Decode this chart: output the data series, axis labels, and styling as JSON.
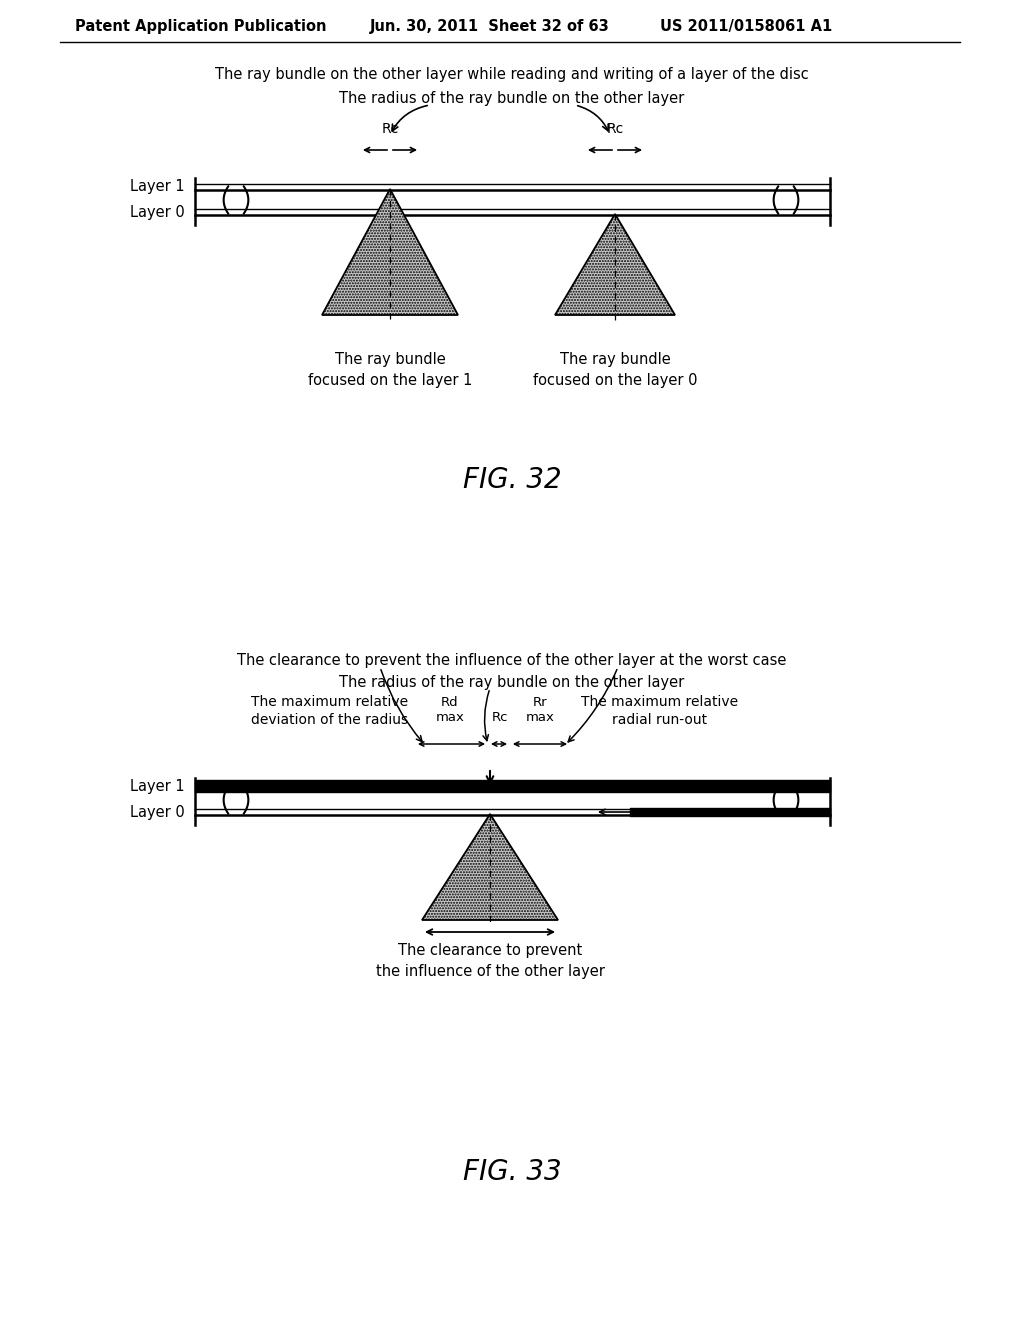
{
  "bg_color": "#ffffff",
  "header_text": "Patent Application Publication",
  "header_date": "Jun. 30, 2011  Sheet 32 of 63",
  "header_patent": "US 2011/0158061 A1",
  "fig32_title1": "The ray bundle on the other layer while reading and writing of a layer of the disc",
  "fig32_title2": "The radius of the ray bundle on the other layer",
  "fig32_label": "FIG. 32",
  "fig32_layer1_label": "Layer 1",
  "fig32_layer0_label": "Layer 0",
  "fig32_rc_label": "Rc",
  "fig32_caption1": "The ray bundle\nfocused on the layer 1",
  "fig32_caption2": "The ray bundle\nfocused on the layer 0",
  "fig33_title1": "The clearance to prevent the influence of the other layer at the worst case",
  "fig33_title2": "The radius of the ray bundle on the other layer",
  "fig33_label": "FIG. 33",
  "fig33_layer1_label": "Layer 1",
  "fig33_layer0_label": "Layer 0",
  "fig33_rdmax_label": "Rd\nmax",
  "fig33_rc_label": "Rc",
  "fig33_rrmax_label": "Rr\nmax",
  "fig33_ann1": "The maximum relative\ndeviation of the radius",
  "fig33_ann2": "The maximum relative\nradial run-out",
  "fig33_caption": "The clearance to prevent\nthe influence of the other layer"
}
